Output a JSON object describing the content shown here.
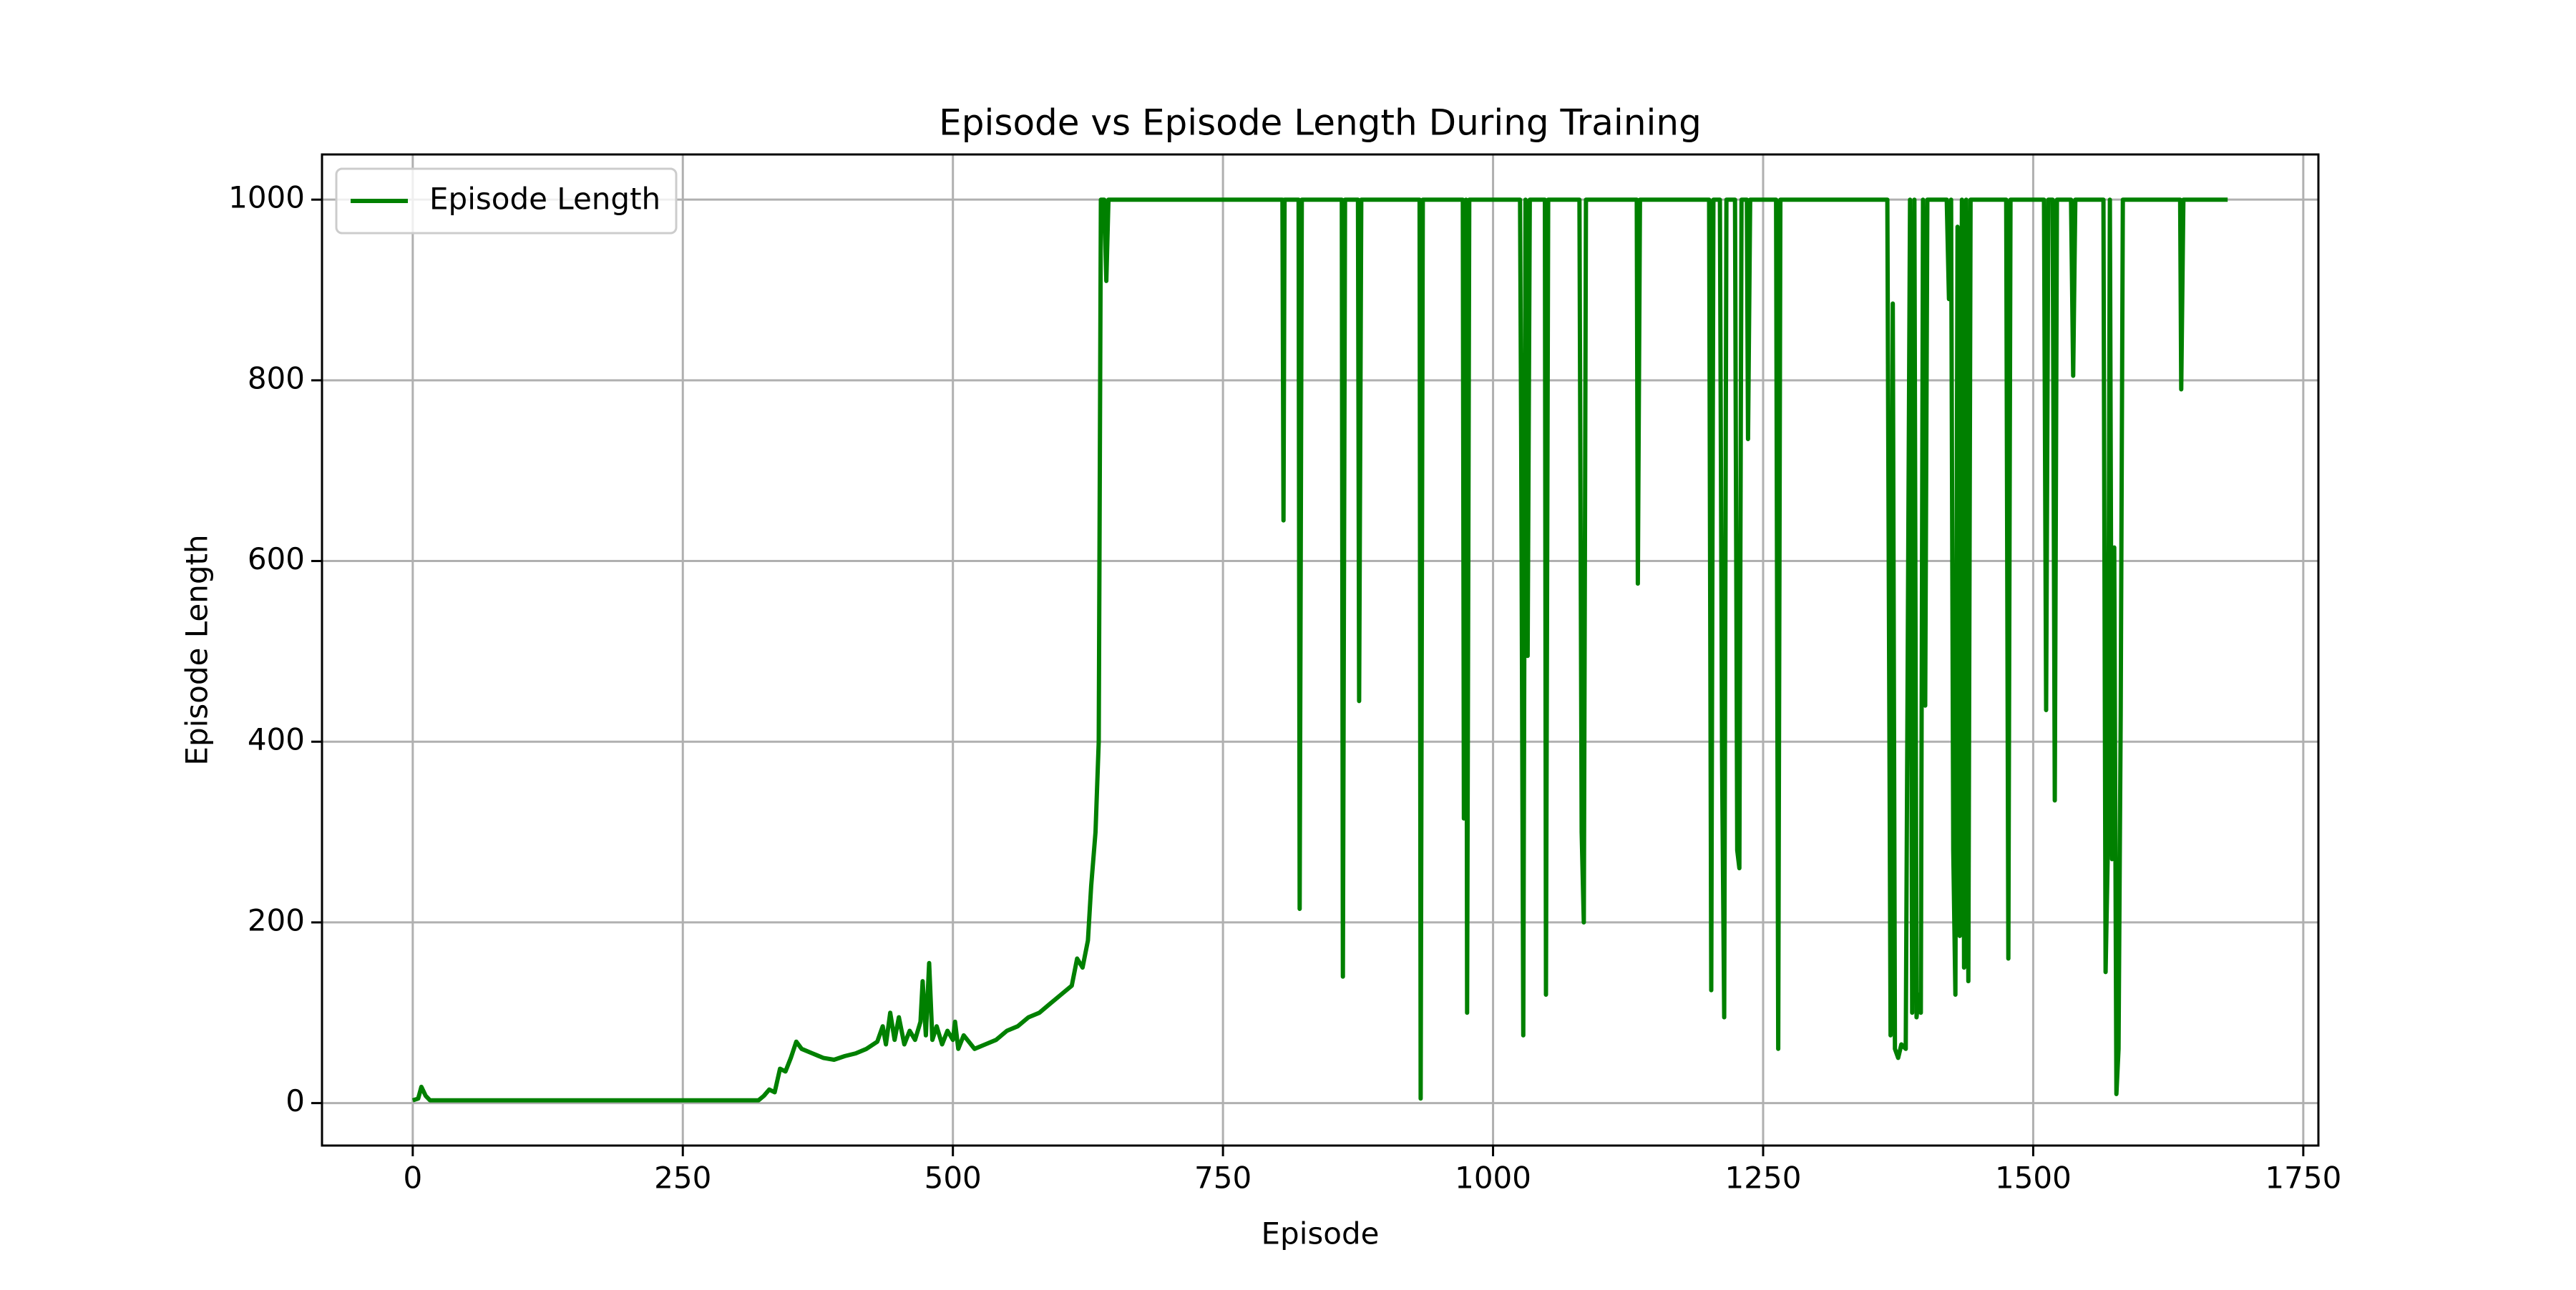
{
  "chart_data": {
    "type": "line",
    "title": "Episode vs Episode Length During Training",
    "xlabel": "Episode",
    "ylabel": "Episode Length",
    "x": [
      0,
      5,
      8,
      12,
      16,
      320,
      325,
      330,
      335,
      340,
      345,
      350,
      355,
      360,
      370,
      380,
      390,
      400,
      410,
      420,
      430,
      435,
      438,
      442,
      446,
      450,
      455,
      460,
      465,
      470,
      472,
      475,
      478,
      481,
      485,
      490,
      495,
      500,
      502,
      505,
      510,
      520,
      530,
      540,
      550,
      560,
      570,
      580,
      590,
      600,
      610,
      615,
      620,
      625,
      628,
      632,
      635,
      637,
      640,
      642,
      644,
      805,
      806,
      807,
      820,
      821,
      823,
      860,
      861,
      863,
      875,
      876,
      878,
      932,
      933,
      935,
      972,
      973,
      975,
      976,
      978,
      1025,
      1026,
      1028,
      1030,
      1032,
      1034,
      1048,
      1049,
      1051,
      1080,
      1082,
      1084,
      1086,
      1133,
      1134,
      1136,
      1200,
      1202,
      1204,
      1210,
      1212,
      1214,
      1216,
      1224,
      1226,
      1228,
      1230,
      1235,
      1236,
      1238,
      1262,
      1264,
      1266,
      1365,
      1366,
      1368,
      1370,
      1372,
      1375,
      1378,
      1382,
      1386,
      1388,
      1390,
      1392,
      1394,
      1396,
      1398,
      1400,
      1402,
      1420,
      1422,
      1424,
      1426,
      1428,
      1430,
      1432,
      1434,
      1436,
      1438,
      1440,
      1442,
      1475,
      1477,
      1479,
      1510,
      1512,
      1514,
      1518,
      1520,
      1522,
      1535,
      1537,
      1539,
      1565,
      1567,
      1569,
      1571,
      1573,
      1575,
      1577,
      1579,
      1581,
      1583,
      1636,
      1637,
      1639,
      1680
    ],
    "series": [
      {
        "name": "Episode Length",
        "color": "#008000",
        "values": [
          3,
          5,
          18,
          8,
          3,
          3,
          8,
          15,
          12,
          38,
          35,
          50,
          68,
          60,
          55,
          50,
          48,
          52,
          55,
          60,
          68,
          85,
          65,
          100,
          70,
          95,
          65,
          80,
          70,
          90,
          135,
          75,
          155,
          70,
          85,
          65,
          80,
          70,
          90,
          60,
          75,
          60,
          65,
          70,
          80,
          85,
          95,
          100,
          110,
          120,
          130,
          160,
          150,
          180,
          240,
          300,
          400,
          1000,
          1000,
          910,
          1000,
          1000,
          645,
          1000,
          1000,
          215,
          1000,
          1000,
          140,
          1000,
          1000,
          445,
          1000,
          1000,
          5,
          1000,
          1000,
          315,
          1000,
          100,
          1000,
          1000,
          750,
          75,
          1000,
          495,
          1000,
          1000,
          120,
          1000,
          1000,
          300,
          200,
          1000,
          1000,
          575,
          1000,
          1000,
          125,
          1000,
          1000,
          380,
          95,
          1000,
          1000,
          280,
          260,
          1000,
          1000,
          735,
          1000,
          1000,
          60,
          1000,
          1000,
          690,
          75,
          885,
          60,
          50,
          65,
          60,
          1000,
          100,
          1000,
          95,
          120,
          100,
          1000,
          440,
          1000,
          1000,
          890,
          1000,
          280,
          120,
          970,
          185,
          1000,
          150,
          1000,
          135,
          1000,
          1000,
          160,
          1000,
          1000,
          435,
          1000,
          1000,
          335,
          1000,
          1000,
          805,
          1000,
          1000,
          145,
          275,
          1000,
          270,
          615,
          10,
          60,
          430,
          1000,
          1000,
          790,
          1000,
          1000
        ]
      }
    ],
    "xlim": [
      -84,
      1764
    ],
    "ylim": [
      -47,
      1050
    ],
    "xticks": [
      0,
      250,
      500,
      750,
      1000,
      1250,
      1500,
      1750
    ],
    "yticks": [
      0,
      200,
      400,
      600,
      800,
      1000
    ],
    "grid": true,
    "legend": "upper left"
  }
}
